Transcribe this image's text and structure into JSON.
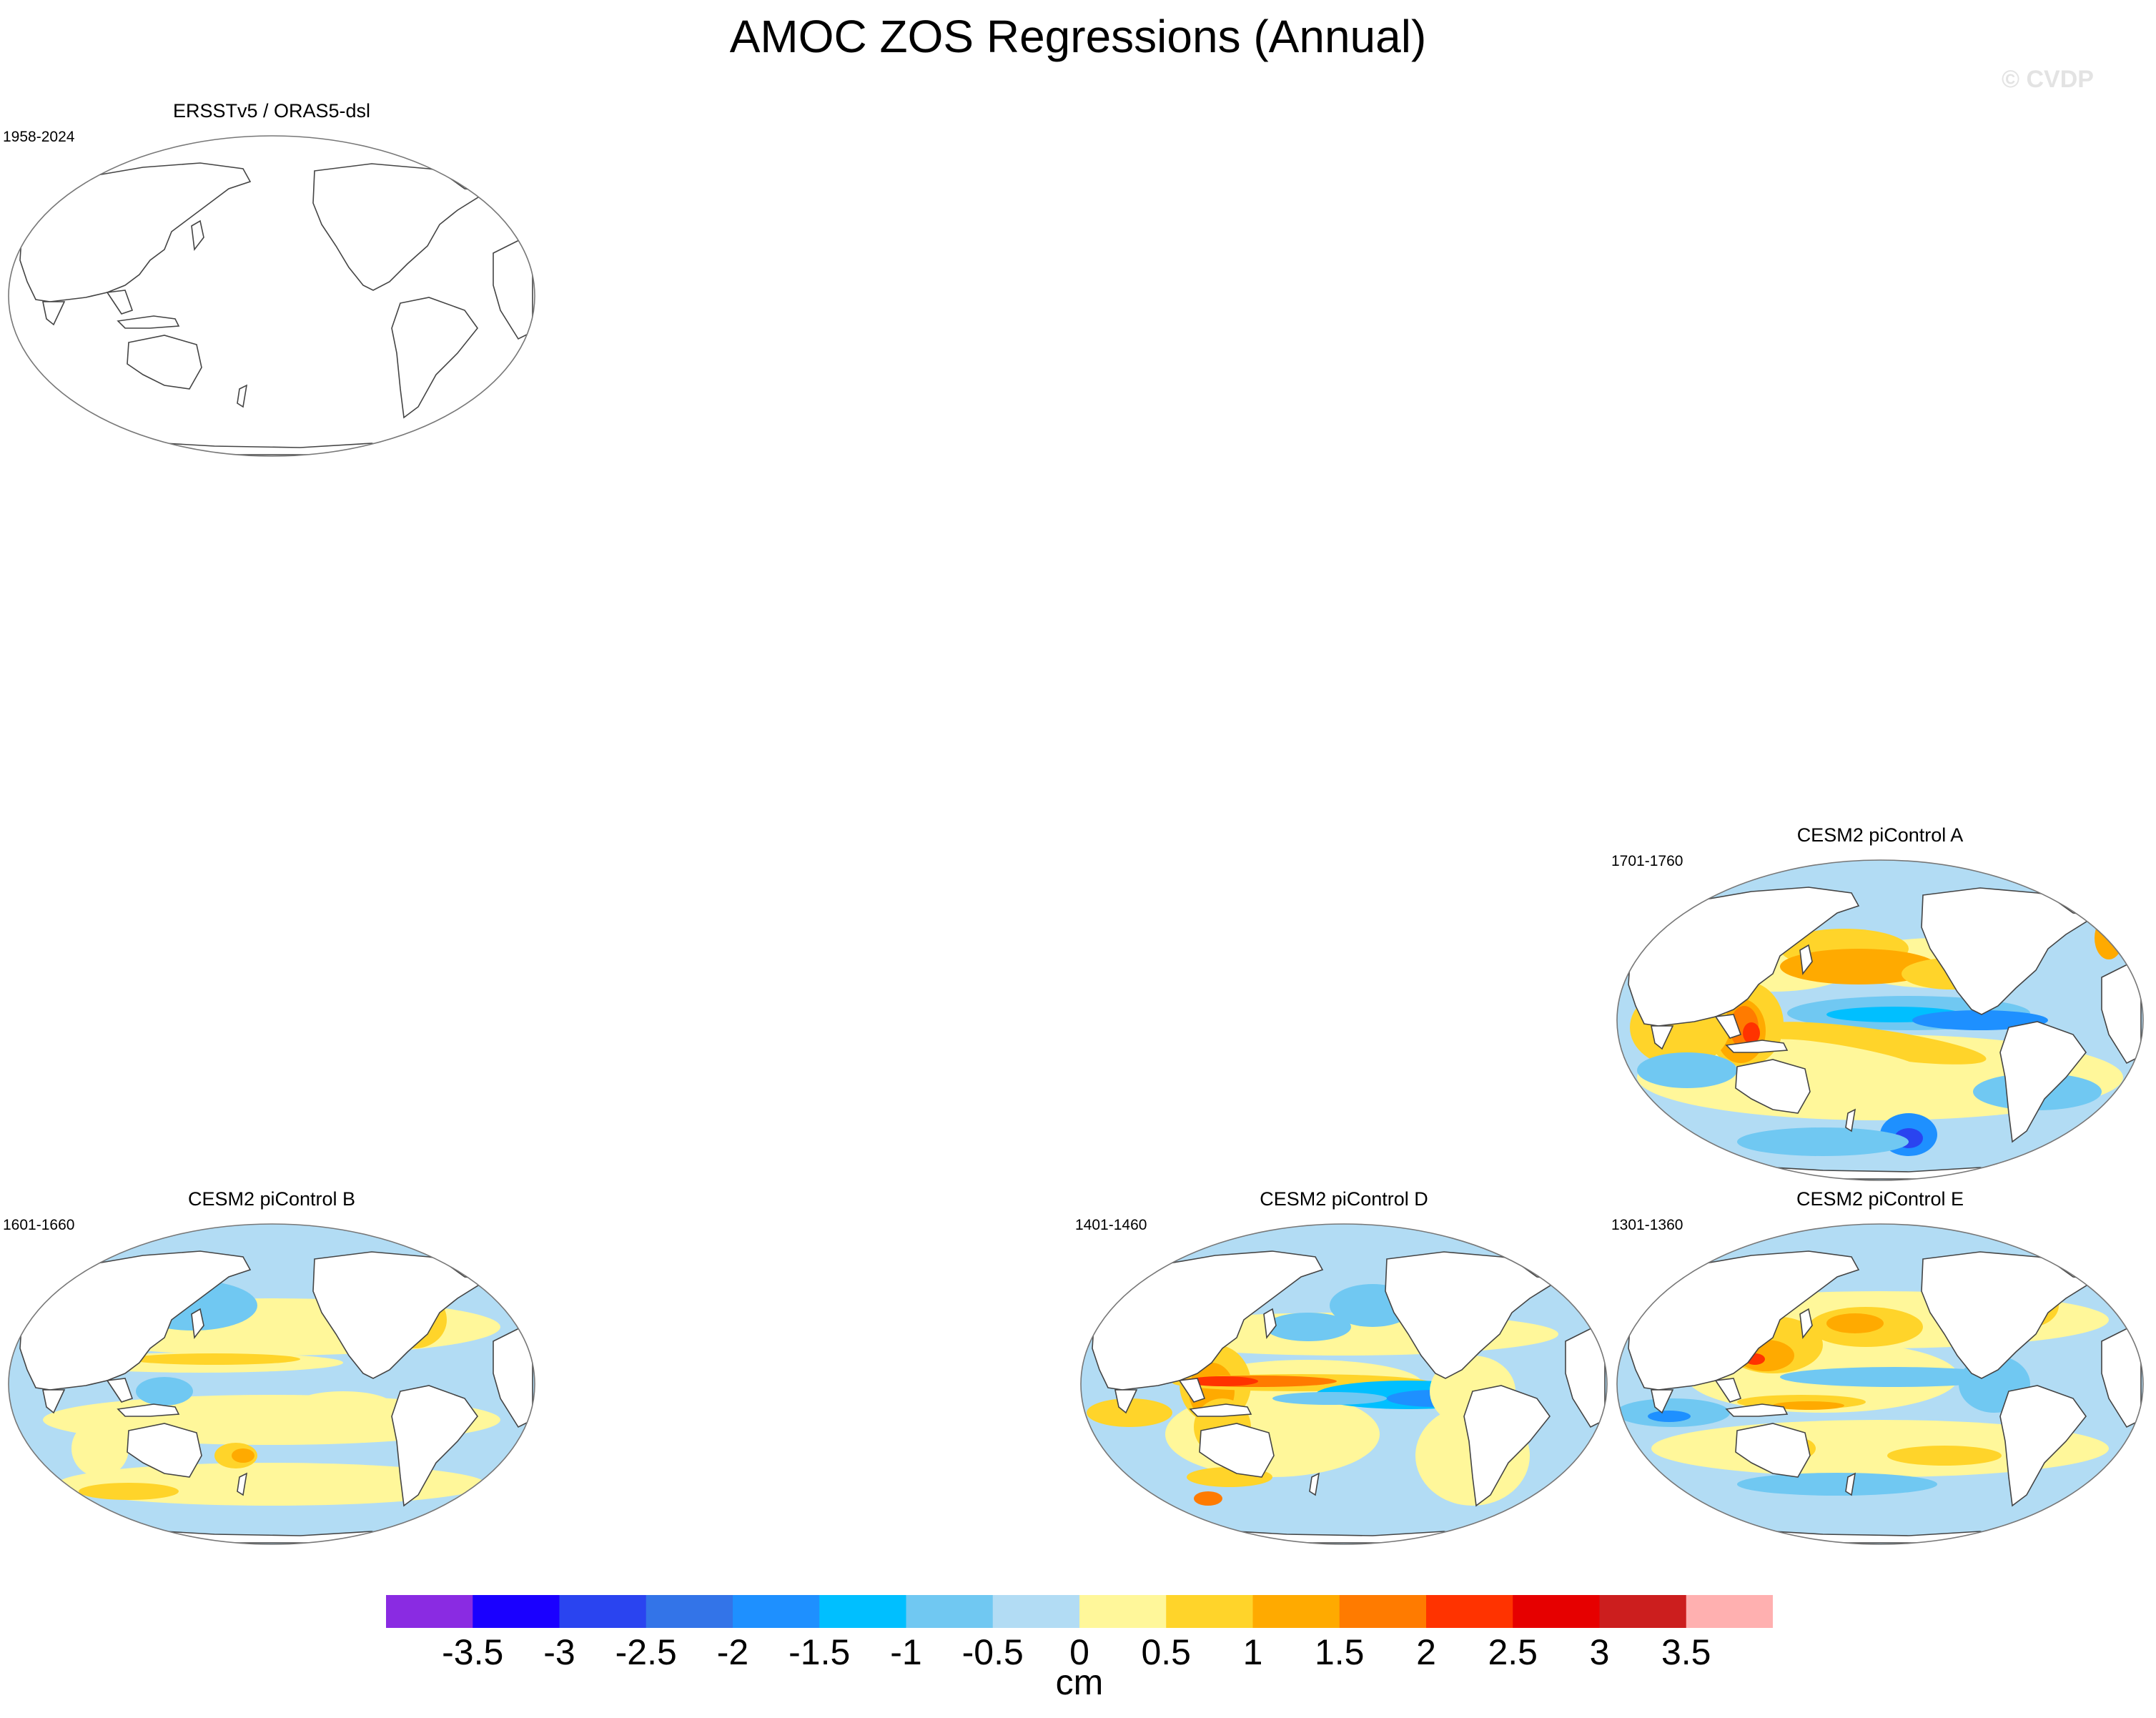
{
  "title": "AMOC ZOS Regressions (Annual)",
  "watermark": "© CVDP",
  "panels": [
    {
      "id": "obs",
      "title": "ERSSTv5 / ORAS5-dsl",
      "period": "1958-2024",
      "has_data": false
    },
    {
      "id": "a",
      "title": "CESM2 piControl A",
      "period": "1701-1760",
      "has_data": true
    },
    {
      "id": "b",
      "title": "CESM2 piControl B",
      "period": "1601-1660",
      "has_data": true
    },
    {
      "id": "d",
      "title": "CESM2 piControl D",
      "period": "1401-1460",
      "has_data": true
    },
    {
      "id": "e",
      "title": "CESM2 piControl E",
      "period": "1301-1360",
      "has_data": true
    }
  ],
  "colorbar": {
    "units": "cm",
    "labels": [
      "-3.5",
      "-3",
      "-2.5",
      "-2",
      "-1.5",
      "-1",
      "-0.5",
      "0",
      "0.5",
      "1",
      "1.5",
      "2",
      "2.5",
      "3",
      "3.5"
    ],
    "colors": [
      "#8a2be2",
      "#1a00ff",
      "#2a44f0",
      "#3374e8",
      "#1e90ff",
      "#00bfff",
      "#70c8f2",
      "#b2dcf4",
      "#fff79a",
      "#ffd42a",
      "#ffaa00",
      "#ff7b00",
      "#ff3300",
      "#e60000",
      "#cc1e1e",
      "#ffb0b0"
    ]
  },
  "colors": {
    "ocean_negative": "#b2dcf4",
    "ocean_positive": "#fff79a",
    "land": "#ffffff",
    "coast": "#444444"
  }
}
